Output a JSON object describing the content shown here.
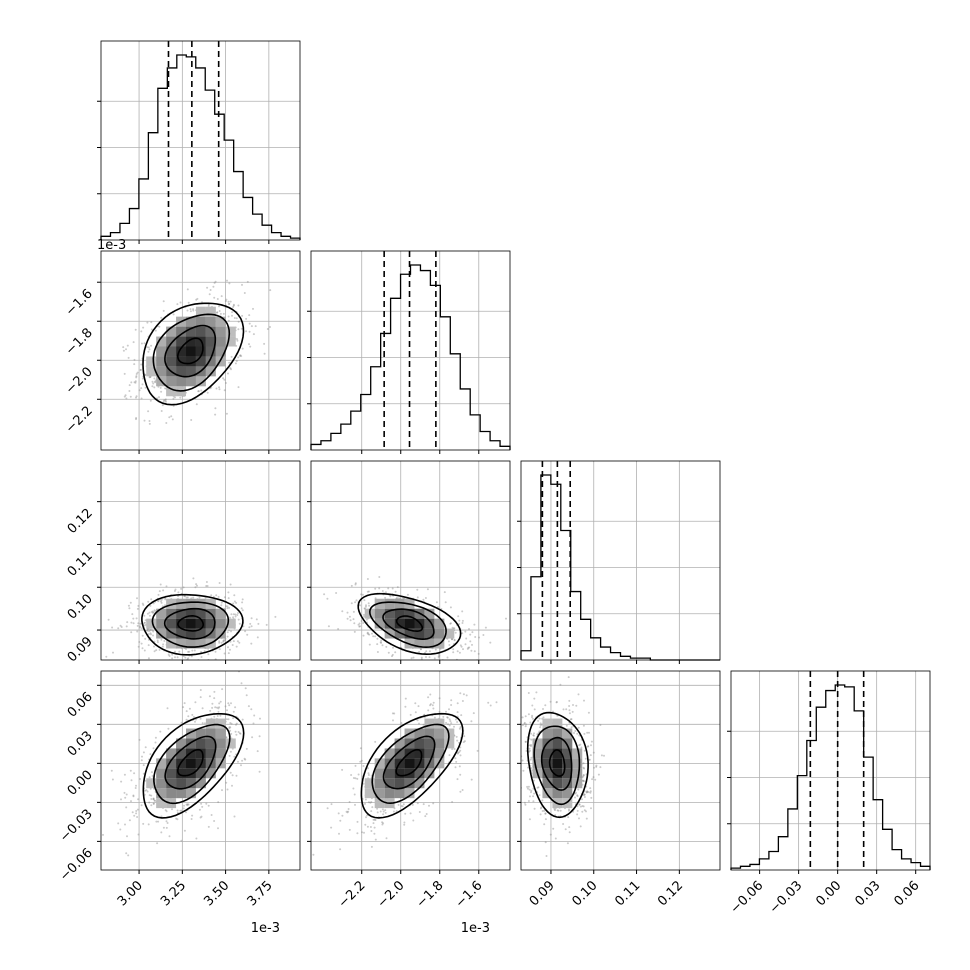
{
  "chart_data": {
    "type": "corner",
    "colors": {
      "ink": "#000000",
      "grid": "#b0b0b0",
      "scatter": "#8c8c8c"
    },
    "grid": true,
    "parameters": [
      {
        "center": 3.3,
        "sigma": 0.145,
        "range": [
          2.78,
          3.93
        ],
        "ticks": [
          3.0,
          3.25,
          3.5,
          3.75
        ],
        "tick_labels": [
          "3.00",
          "3.25",
          "3.50",
          "3.75"
        ],
        "offset_label": "1e-3",
        "quantiles": [
          3.17,
          3.305,
          3.46
        ],
        "hist": [
          0.02,
          0.04,
          0.09,
          0.17,
          0.33,
          0.58,
          0.82,
          0.93,
          1.0,
          0.99,
          0.93,
          0.81,
          0.68,
          0.54,
          0.37,
          0.23,
          0.14,
          0.08,
          0.04,
          0.02,
          0.01
        ]
      },
      {
        "center": -1.955,
        "sigma": 0.13,
        "range": [
          -2.46,
          -1.44
        ],
        "ticks": [
          -2.2,
          -2.0,
          -1.8,
          -1.6
        ],
        "tick_labels": [
          "−2.2",
          "−2.0",
          "−1.8",
          "−1.6"
        ],
        "offset_label": "1e-3",
        "quantiles": [
          -2.085,
          -1.955,
          -1.82
        ],
        "hist": [
          0.03,
          0.05,
          0.09,
          0.14,
          0.21,
          0.3,
          0.45,
          0.63,
          0.82,
          0.95,
          1.0,
          0.97,
          0.89,
          0.72,
          0.52,
          0.33,
          0.19,
          0.1,
          0.05,
          0.02
        ]
      },
      {
        "center": 0.0915,
        "sigma": 0.0035,
        "range": [
          0.083,
          0.1295
        ],
        "ticks": [
          0.09,
          0.1,
          0.11,
          0.12
        ],
        "tick_labels": [
          "0.09",
          "0.10",
          "0.11",
          "0.12"
        ],
        "offset_label": "",
        "quantiles": [
          0.088,
          0.0915,
          0.0945
        ],
        "hist": [
          0.05,
          0.45,
          1.0,
          0.95,
          0.7,
          0.37,
          0.22,
          0.12,
          0.07,
          0.04,
          0.02,
          0.01,
          0.01,
          0,
          0,
          0,
          0,
          0,
          0,
          0
        ]
      },
      {
        "center": 0.0,
        "sigma": 0.02,
        "range": [
          -0.082,
          0.071
        ],
        "ticks": [
          -0.06,
          -0.03,
          0.0,
          0.03,
          0.06
        ],
        "tick_labels": [
          "−0.06",
          "−0.03",
          "0.00",
          "0.03",
          "0.06"
        ],
        "offset_label": "",
        "quantiles": [
          -0.021,
          0.0,
          0.02
        ],
        "hist": [
          0.01,
          0.02,
          0.03,
          0.06,
          0.1,
          0.18,
          0.33,
          0.51,
          0.7,
          0.88,
          0.97,
          1.0,
          0.99,
          0.86,
          0.61,
          0.38,
          0.22,
          0.11,
          0.06,
          0.04,
          0.02
        ]
      }
    ],
    "correlations": [
      [
        1.0,
        0.35,
        0.0,
        0.55
      ],
      [
        0.35,
        1.0,
        -0.45,
        0.6
      ],
      [
        0.0,
        -0.45,
        1.0,
        -0.15
      ],
      [
        0.55,
        0.6,
        -0.15,
        1.0
      ]
    ],
    "contour_sigmas": [
      0.5,
      1.0,
      1.5,
      2.0
    ]
  }
}
